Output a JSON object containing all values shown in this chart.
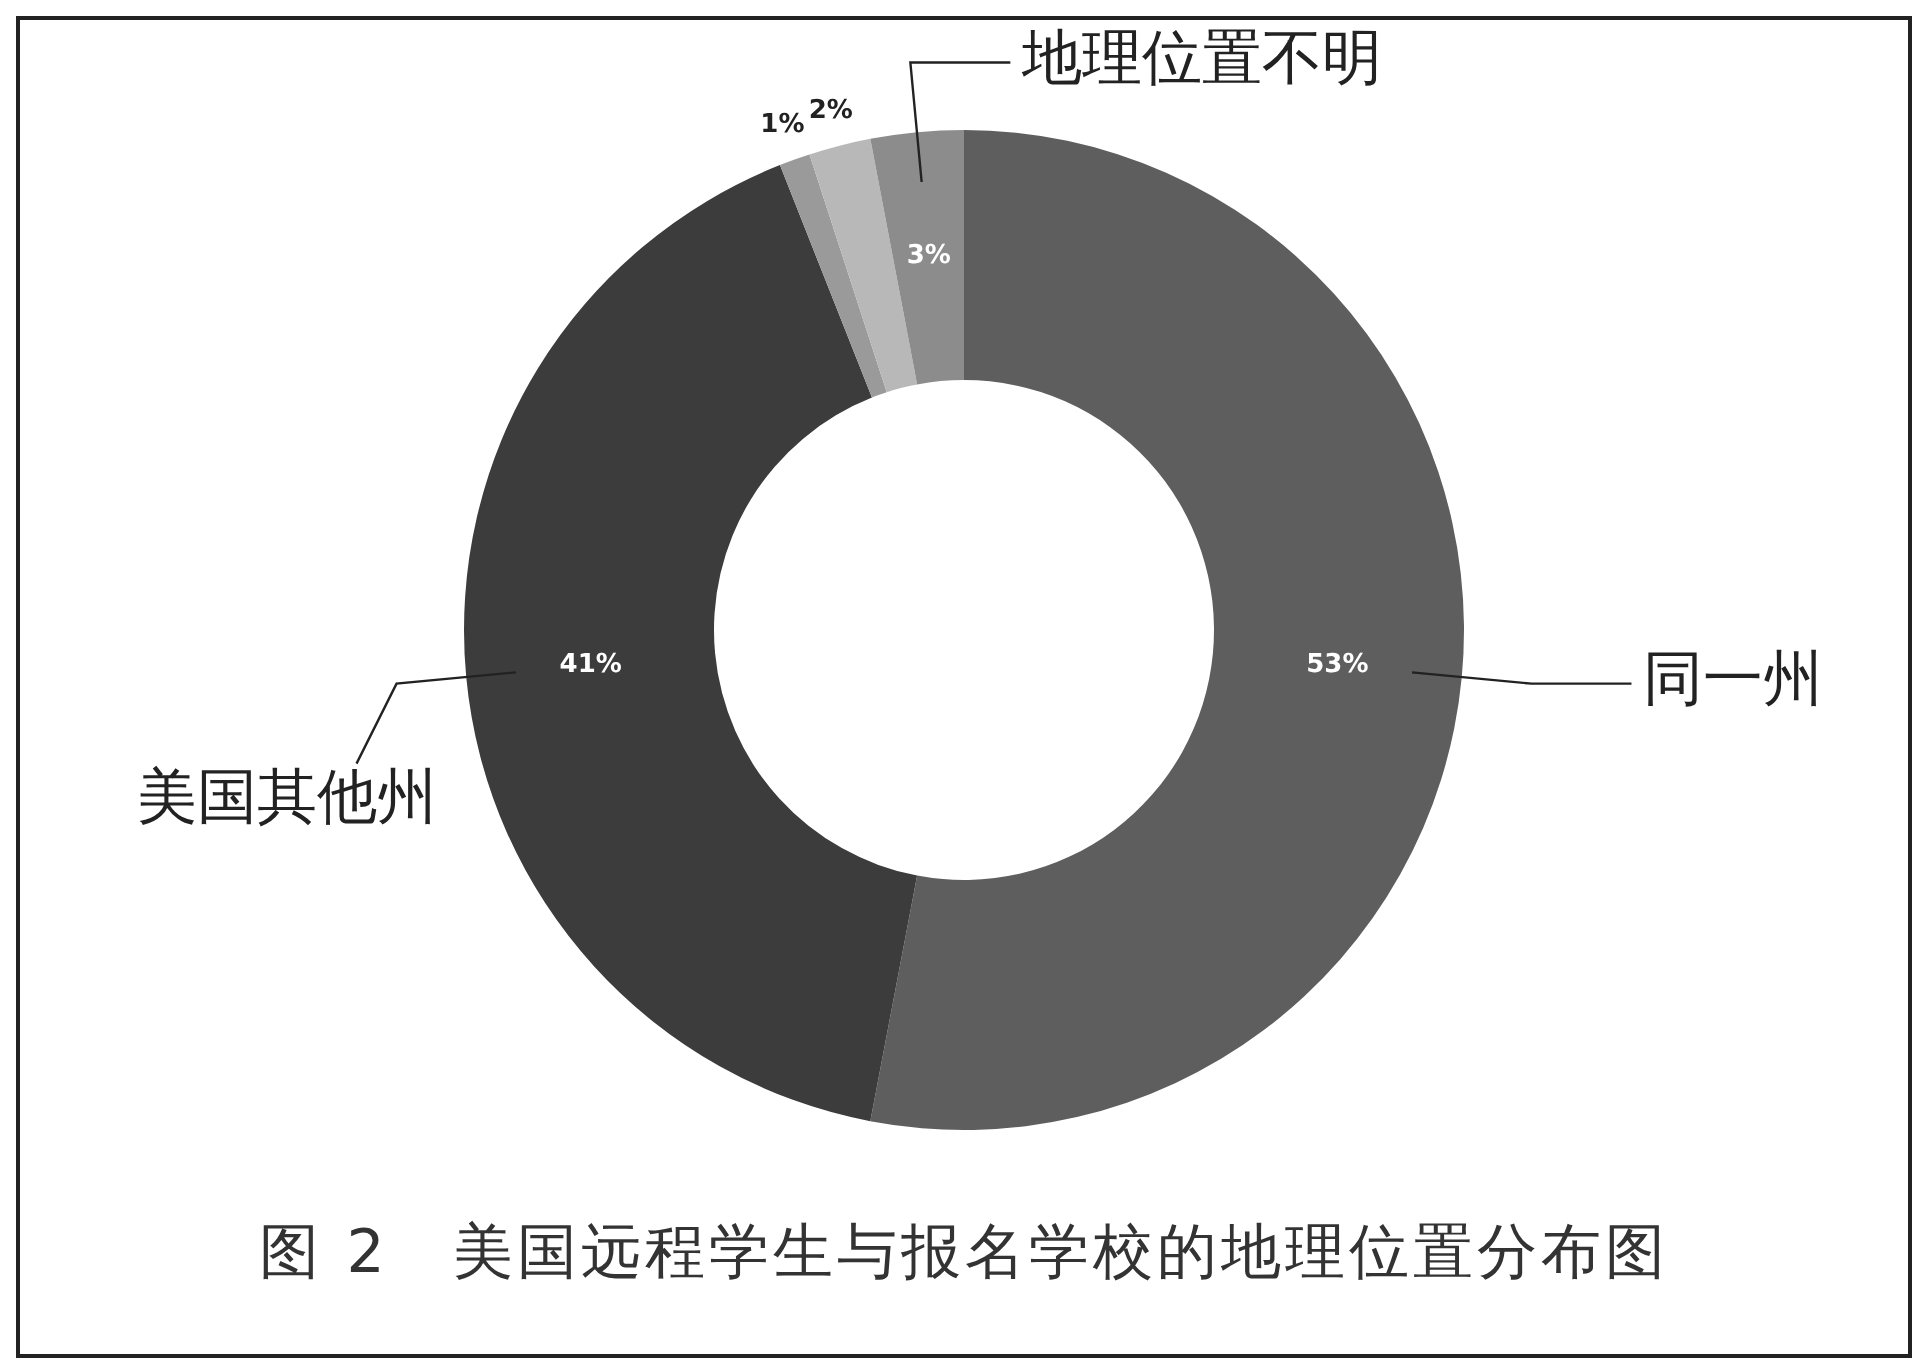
{
  "chart_data": {
    "type": "donut",
    "title": "图 2　美国远程学生与报名学校的地理位置分布图",
    "categories": [
      "同一州",
      "美国其他州",
      null,
      null,
      "地理位置不明"
    ],
    "values": [
      53,
      41,
      1,
      2,
      3
    ],
    "colors": [
      "#5e5e5e",
      "#3c3c3c",
      "#9a9a9a",
      "#b8b8b8",
      "#8c8c8c"
    ],
    "value_labels": [
      "53%",
      "41%",
      "1%",
      "2%",
      "3%"
    ],
    "legend": false
  }
}
